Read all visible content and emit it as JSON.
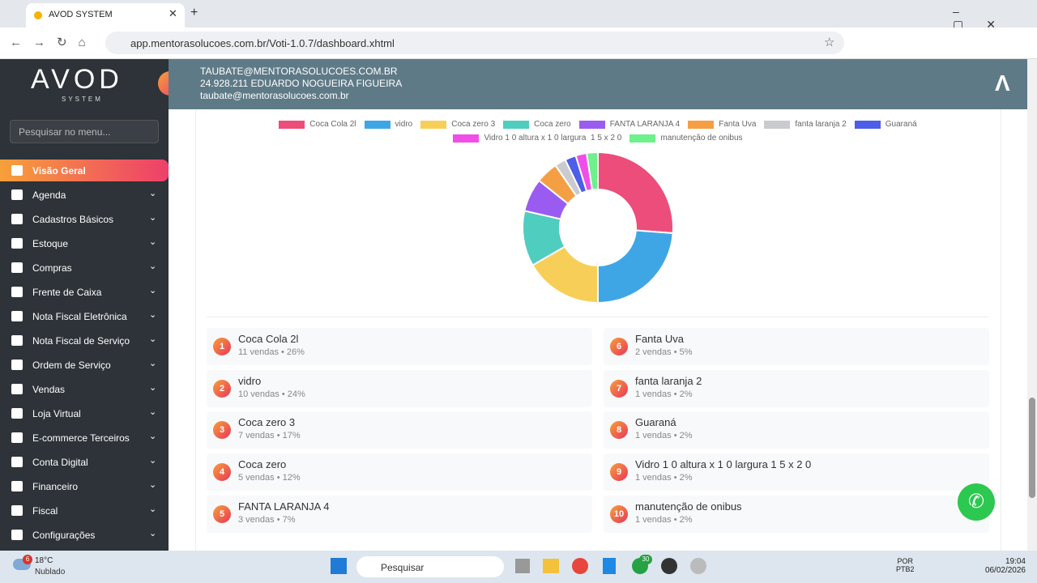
{
  "browser": {
    "tab_title": "AVOD SYSTEM",
    "url": "app.mentorasolucoes.com.br/Voti-1.0.7/dashboard.xhtml"
  },
  "sidebar": {
    "logo": "AVOD",
    "logo_sub": "SYSTEM",
    "search_placeholder": "Pesquisar no menu...",
    "menu": [
      "Visão Geral",
      "Agenda",
      "Cadastros Básicos",
      "Estoque",
      "Compras",
      "Frente de Caixa",
      "Nota Fiscal Eletrônica",
      "Nota Fiscal de Serviço",
      "Ordem de Serviço",
      "Vendas",
      "Loja Virtual",
      "E-commerce Terceiros",
      "Conta Digital",
      "Financeiro",
      "Fiscal",
      "Configurações"
    ]
  },
  "header": {
    "lines": [
      "TAUBATE@MENTORASOLUCOES.COM.BR",
      "24.928.211 EDUARDO NOGUEIRA FIGUEIRA",
      "taubate@mentorasolucoes.com.br"
    ]
  },
  "chart_data": {
    "type": "doughnut",
    "categories": [
      "Coca Cola 2l",
      "vidro",
      "Coca zero 3",
      "Coca zero",
      "FANTA LARANJA 4",
      "Fanta Uva",
      "fanta laranja 2",
      "Guaraná",
      "Vidro 1 0 altura x 1 0 largura  1 5 x 2 0",
      "manutenção de onibus"
    ],
    "values": [
      11,
      10,
      7,
      5,
      3,
      2,
      1,
      1,
      1,
      1
    ],
    "colors": [
      "#ec4d7a",
      "#3fa6e6",
      "#f7cf58",
      "#4fcdbf",
      "#9a5cf0",
      "#f59f45",
      "#c9cbcf",
      "#4d5ee8",
      "#f04ee8",
      "#6ef08c"
    ]
  },
  "ranking": [
    {
      "rank": 1,
      "name": "Coca Cola 2l",
      "detail": "11 vendas • 26%"
    },
    {
      "rank": 2,
      "name": "vidro",
      "detail": "10 vendas • 24%"
    },
    {
      "rank": 3,
      "name": "Coca zero 3",
      "detail": "7 vendas • 17%"
    },
    {
      "rank": 4,
      "name": "Coca zero",
      "detail": "5 vendas • 12%"
    },
    {
      "rank": 5,
      "name": "FANTA LARANJA 4",
      "detail": "3 vendas • 7%"
    },
    {
      "rank": 6,
      "name": "Fanta Uva",
      "detail": "2 vendas • 5%"
    },
    {
      "rank": 7,
      "name": "fanta laranja 2",
      "detail": "1 vendas • 2%"
    },
    {
      "rank": 8,
      "name": "Guaraná",
      "detail": "1 vendas • 2%"
    },
    {
      "rank": 9,
      "name": "Vidro 1 0 altura x 1 0 largura 1 5 x 2 0",
      "detail": "1 vendas • 2%"
    },
    {
      "rank": 10,
      "name": "manutenção de onibus",
      "detail": "1 vendas • 2%"
    }
  ],
  "taskbar": {
    "weather_badge": "6",
    "temperature": "18°C",
    "condition": "Nublado",
    "search": "Pesquisar",
    "chat_badge": "30",
    "lang": "POR",
    "layout": "PTB2",
    "time": "19:04",
    "date": "06/02/2026"
  }
}
